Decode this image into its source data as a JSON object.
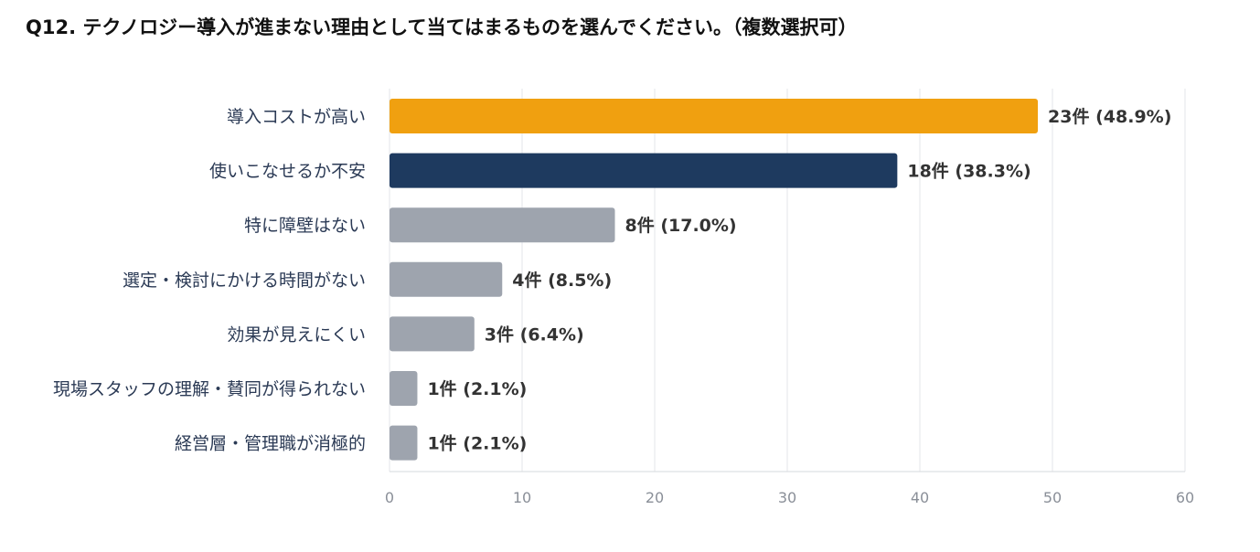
{
  "question": {
    "title": "Q12. テクノロジー導入が進まない理由として当てはまるものを選んでください。（複数選択可）"
  },
  "chart_data": {
    "type": "bar",
    "orientation": "horizontal",
    "categories": [
      "導入コストが高い",
      "使いこなせるか不安",
      "特に障壁はない",
      "選定・検討にかける時間がない",
      "効果が見えにくい",
      "現場スタッフの理解・賛同が得られない",
      "経営層・管理職が消極的"
    ],
    "values": [
      48.9,
      38.3,
      17.0,
      8.5,
      6.4,
      2.1,
      2.1
    ],
    "counts": [
      23,
      18,
      8,
      4,
      3,
      1,
      1
    ],
    "data_labels": [
      "23件 (48.9%)",
      "18件 (38.3%)",
      "8件 (17.0%)",
      "4件 (8.5%)",
      "3件 (6.4%)",
      "1件 (2.1%)",
      "1件 (2.1%)"
    ],
    "bar_colors": [
      "#f0a010",
      "#1e3a5f",
      "#9ea4ae",
      "#9ea4ae",
      "#9ea4ae",
      "#9ea4ae",
      "#9ea4ae"
    ],
    "xlim": [
      0,
      60
    ],
    "xticks": [
      0,
      10,
      20,
      30,
      40,
      50,
      60
    ],
    "grid": true,
    "title": "",
    "xlabel": "",
    "ylabel": ""
  }
}
